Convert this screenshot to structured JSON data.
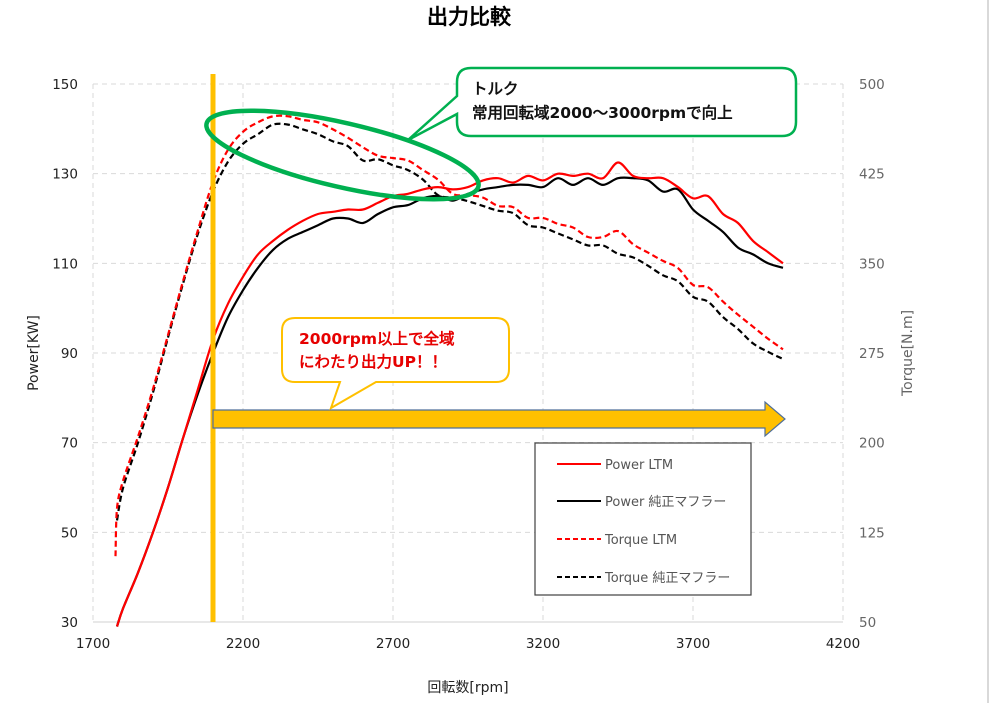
{
  "chart_data": {
    "type": "line",
    "title": "出力比較",
    "xlabel": "回転数[rpm]",
    "ylabel": "Power[KW]",
    "y2label": "Torque[N.m]",
    "xlim": [
      1700,
      4200
    ],
    "ylim": [
      30,
      150
    ],
    "y2lim": [
      50,
      500
    ],
    "x_ticks": [
      "1700",
      "2200",
      "2700",
      "3200",
      "3700",
      "4200"
    ],
    "y_ticks": [
      "30",
      "50",
      "70",
      "90",
      "110",
      "130",
      "150"
    ],
    "y2_ticks": [
      "50",
      "125",
      "200",
      "275",
      "350",
      "425",
      "500"
    ],
    "grid": true,
    "legend_position": "bottom-right",
    "series": [
      {
        "name": "Power LTM",
        "axis": "left",
        "color": "#ff0000",
        "dash": false,
        "x": [
          1780,
          1800,
          1850,
          1900,
          1950,
          2000,
          2050,
          2100,
          2150,
          2200,
          2250,
          2300,
          2350,
          2400,
          2450,
          2500,
          2550,
          2600,
          2650,
          2700,
          2750,
          2800,
          2850,
          2900,
          2950,
          3000,
          3050,
          3100,
          3150,
          3200,
          3250,
          3300,
          3350,
          3400,
          3450,
          3500,
          3550,
          3600,
          3650,
          3700,
          3750,
          3800,
          3850,
          3900,
          3950,
          4000
        ],
        "y": [
          29,
          33,
          41,
          50,
          60,
          71,
          82,
          93,
          101,
          107,
          112,
          115,
          117.5,
          119.5,
          121,
          121.5,
          122,
          122,
          123.5,
          125,
          125.5,
          126.5,
          127,
          126.5,
          127,
          128.5,
          129,
          128,
          129.5,
          128.5,
          130,
          129.5,
          130,
          129,
          132.5,
          129.5,
          129,
          129,
          127,
          124.5,
          125,
          121,
          119,
          115,
          112.5,
          110
        ]
      },
      {
        "name": "Power 純正マフラー",
        "axis": "left",
        "color": "#000000",
        "dash": false,
        "x": [
          1780,
          1800,
          1850,
          1900,
          1950,
          2000,
          2050,
          2100,
          2150,
          2200,
          2250,
          2300,
          2350,
          2400,
          2450,
          2500,
          2550,
          2600,
          2650,
          2700,
          2750,
          2800,
          2850,
          2900,
          2950,
          3000,
          3050,
          3100,
          3150,
          3200,
          3250,
          3300,
          3350,
          3400,
          3450,
          3500,
          3550,
          3600,
          3650,
          3700,
          3750,
          3800,
          3850,
          3900,
          3950,
          4000
        ],
        "y": [
          29,
          33,
          41,
          50,
          60,
          71,
          81,
          90,
          98,
          104,
          109,
          113,
          115.5,
          117,
          118.5,
          120,
          120,
          119,
          121,
          122.5,
          123,
          124.5,
          125,
          124,
          125.5,
          126.5,
          127,
          127.5,
          127.5,
          127,
          129,
          127.5,
          129,
          127.5,
          129,
          129,
          128.5,
          126,
          126.5,
          122,
          119.5,
          117,
          113.5,
          112,
          110,
          109
        ]
      },
      {
        "name": "Torque LTM",
        "axis": "right",
        "color": "#ff0000",
        "dash": true,
        "x": [
          1775,
          1780,
          1800,
          1850,
          1900,
          1950,
          2000,
          2050,
          2100,
          2150,
          2200,
          2250,
          2300,
          2350,
          2400,
          2450,
          2500,
          2550,
          2600,
          2650,
          2700,
          2750,
          2800,
          2850,
          2900,
          2950,
          3000,
          3050,
          3100,
          3150,
          3200,
          3250,
          3300,
          3350,
          3400,
          3450,
          3500,
          3550,
          3600,
          3650,
          3700,
          3750,
          3800,
          3850,
          3900,
          3950,
          4000
        ],
        "y": [
          105,
          145,
          168,
          205,
          245,
          290,
          335,
          378,
          418,
          445,
          460,
          468,
          473,
          473,
          470,
          468,
          462,
          455,
          447,
          440,
          438,
          436,
          428,
          420,
          408,
          407,
          405,
          398,
          397,
          388,
          388,
          383,
          380,
          372,
          372,
          377,
          366,
          359,
          352,
          346,
          332,
          330,
          318,
          307,
          297,
          287,
          278
        ]
      },
      {
        "name": "Torque 純正マフラー",
        "axis": "right",
        "color": "#000000",
        "dash": true,
        "x": [
          1780,
          1800,
          1850,
          1900,
          1950,
          2000,
          2050,
          2100,
          2150,
          2200,
          2250,
          2300,
          2350,
          2400,
          2450,
          2500,
          2550,
          2600,
          2650,
          2700,
          2750,
          2800,
          2850,
          2900,
          2950,
          3000,
          3050,
          3100,
          3150,
          3200,
          3250,
          3300,
          3350,
          3400,
          3450,
          3500,
          3550,
          3600,
          3650,
          3700,
          3750,
          3800,
          3850,
          3900,
          3950,
          4000
        ],
        "y": [
          135,
          162,
          200,
          242,
          288,
          333,
          375,
          410,
          435,
          450,
          458,
          466,
          466,
          462,
          458,
          452,
          448,
          436,
          437,
          432,
          428,
          420,
          407,
          405,
          402,
          398,
          394,
          392,
          382,
          380,
          375,
          370,
          365,
          365,
          358,
          355,
          348,
          340,
          335,
          322,
          318,
          305,
          295,
          283,
          276,
          270
        ]
      }
    ],
    "annotations": {
      "vertical_marker_rpm": 2100,
      "torque_ellipse_range_rpm": [
        2100,
        2950
      ],
      "arrow_range_rpm": [
        2100,
        4000
      ],
      "torque_callout": {
        "line1": "トルク",
        "line2": "常用回転域2000～3000rpmで向上"
      },
      "power_callout": {
        "line1": "2000rpm以上で全域",
        "line2": "にわたり出力UP！！"
      }
    }
  },
  "colors": {
    "accent_yellow": "#ffc000",
    "ellipse_green": "#00b050",
    "grid": "#d9d9d9"
  }
}
